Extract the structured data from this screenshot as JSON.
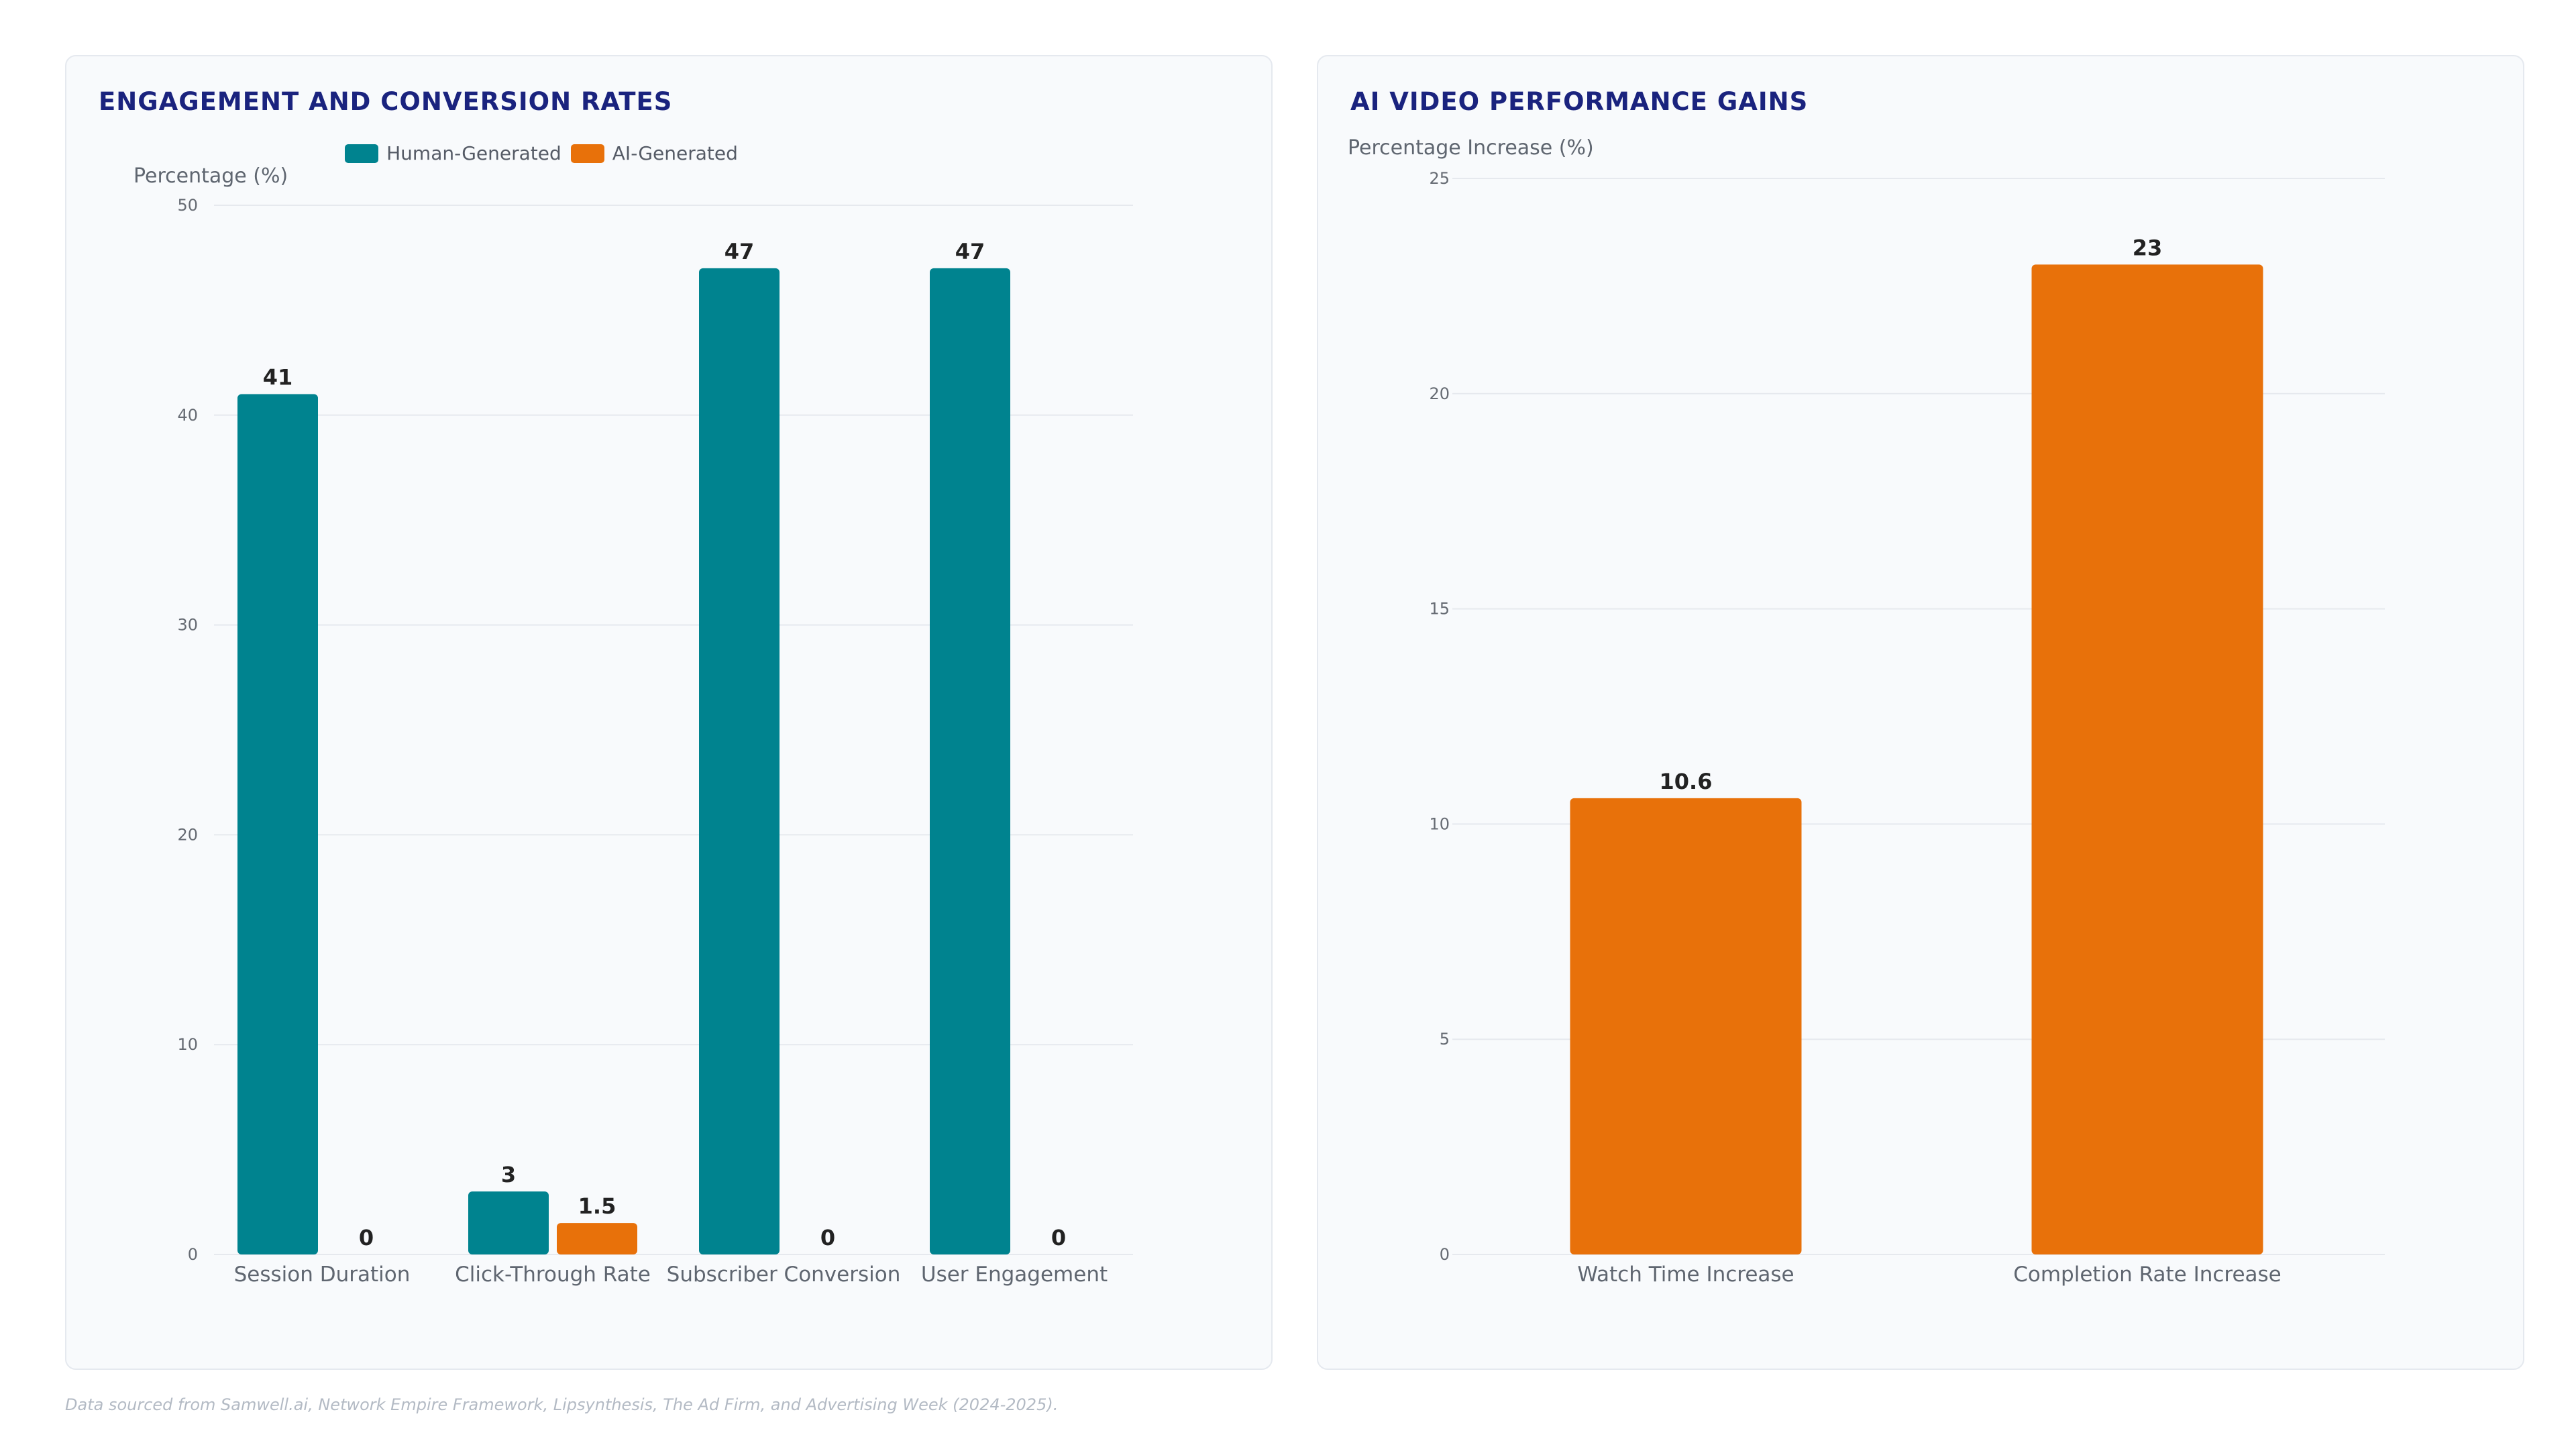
{
  "footnote": "Data sourced from Samwell.ai, Network Empire Framework, Lipsynthesis, The Ad Firm, and Advertising Week (2024-2025).",
  "colors": {
    "human": "#00838f",
    "ai": "#e8710a",
    "title": "#1a237e",
    "grid": "#e6e9ee",
    "tick": "#666b73",
    "axis_label": "#5f6670",
    "value_label": "#222222"
  },
  "chart_data": [
    {
      "type": "bar",
      "title": "ENGAGEMENT AND CONVERSION RATES",
      "ylabel": "Percentage (%)",
      "xlabel": "",
      "ylim": [
        0,
        50
      ],
      "yticks": [
        0,
        10,
        20,
        30,
        40,
        50
      ],
      "grid": true,
      "legend_position": "top",
      "categories": [
        "Session Duration",
        "Click-Through Rate",
        "Subscriber Conversion",
        "User Engagement"
      ],
      "series": [
        {
          "name": "Human-Generated",
          "color_key": "human",
          "values": [
            41,
            3,
            47,
            47
          ],
          "labels": [
            "41",
            "3",
            "47",
            "47"
          ]
        },
        {
          "name": "AI-Generated",
          "color_key": "ai",
          "values": [
            0,
            1.5,
            0,
            0
          ],
          "labels": [
            "0",
            "1.5",
            "0",
            "0"
          ]
        }
      ]
    },
    {
      "type": "bar",
      "title": "AI VIDEO PERFORMANCE GAINS",
      "ylabel": "Percentage Increase (%)",
      "xlabel": "",
      "ylim": [
        0,
        25
      ],
      "yticks": [
        0,
        5,
        10,
        15,
        20,
        25
      ],
      "grid": true,
      "legend_position": "none",
      "categories": [
        "Watch Time Increase",
        "Completion Rate Increase"
      ],
      "series": [
        {
          "color_key": "ai",
          "values": [
            10.6,
            23
          ],
          "labels": [
            "10.6",
            "23"
          ]
        }
      ]
    }
  ]
}
